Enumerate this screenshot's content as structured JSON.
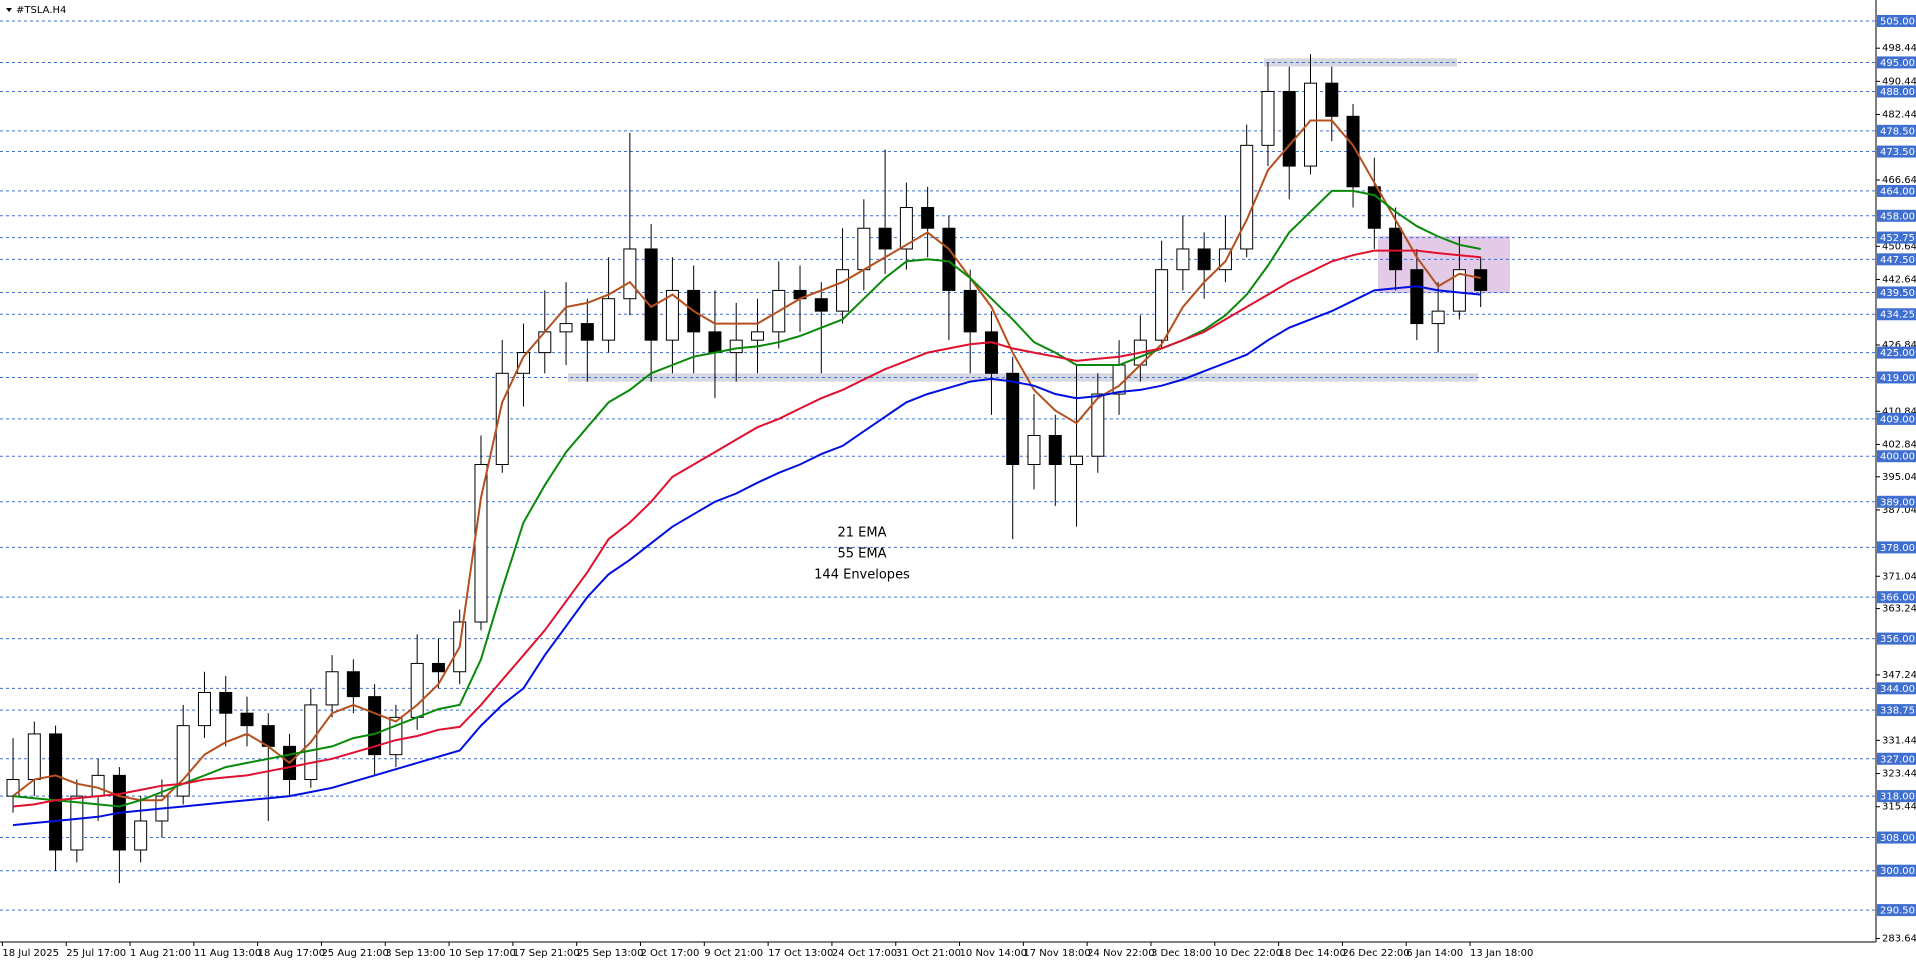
{
  "chart_data": {
    "type": "candlestick",
    "title": "#TSLA.H4",
    "categories": [
      "18 Jul 2025",
      null,
      null,
      "25 Jul 17:00",
      null,
      null,
      "1 Aug 21:00",
      null,
      null,
      "11 Aug 13:00",
      null,
      null,
      "18 Aug 17:00",
      null,
      null,
      "25 Aug 21:00",
      null,
      null,
      "3 Sep 13:00",
      null,
      null,
      "10 Sep 17:00",
      null,
      null,
      "17 Sep 21:00",
      null,
      null,
      "25 Sep 13:00",
      null,
      null,
      "2 Oct 17:00",
      null,
      null,
      "9 Oct 21:00",
      null,
      null,
      "17 Oct 13:00",
      null,
      null,
      "24 Oct 17:00",
      null,
      null,
      "31 Oct 21:00",
      null,
      null,
      "10 Nov 14:00",
      null,
      null,
      "17 Nov 18:00",
      null,
      null,
      "24 Nov 22:00",
      null,
      null,
      "3 Dec 18:00",
      null,
      null,
      "10 Dec 22:00",
      null,
      null,
      "18 Dec 14:00",
      null,
      null,
      "26 Dec 22:00",
      null,
      null,
      "6 Jan 14:00",
      null,
      null,
      "13 Jan 18:00"
    ],
    "open": [
      318,
      322,
      333,
      305,
      318,
      323,
      305,
      312,
      318,
      335,
      343,
      338,
      335,
      330,
      322,
      340,
      348,
      342,
      328,
      337,
      350,
      348,
      360,
      398,
      420,
      425,
      430,
      432,
      428,
      438,
      450,
      428,
      440,
      430,
      425,
      428,
      430,
      440,
      438,
      435,
      445,
      455,
      450,
      460,
      455,
      440,
      430,
      420,
      398,
      405,
      398,
      400,
      415,
      422,
      428,
      445,
      450,
      445,
      450,
      475,
      488,
      470,
      490,
      482,
      465,
      455,
      445,
      432,
      435,
      445
    ],
    "high": [
      332,
      336,
      335,
      322,
      327,
      325,
      318,
      322,
      340,
      348,
      347,
      342,
      338,
      333,
      344,
      352,
      351,
      345,
      340,
      357,
      356,
      363,
      405,
      428,
      432,
      440,
      442,
      438,
      448,
      478,
      456,
      448,
      446,
      440,
      437,
      438,
      447,
      446,
      442,
      455,
      462,
      474,
      466,
      465,
      458,
      445,
      435,
      424,
      415,
      410,
      422,
      420,
      428,
      434,
      452,
      458,
      454,
      458,
      480,
      495,
      494,
      497,
      494,
      485,
      472,
      460,
      450,
      442,
      453,
      448
    ],
    "low": [
      314,
      318,
      300,
      302,
      312,
      297,
      302,
      308,
      316,
      332,
      330,
      330,
      312,
      318,
      320,
      337,
      338,
      323,
      325,
      334,
      344,
      345,
      358,
      396,
      412,
      420,
      422,
      418,
      425,
      434,
      418,
      420,
      420,
      414,
      418,
      420,
      426,
      430,
      420,
      432,
      440,
      444,
      445,
      448,
      428,
      420,
      410,
      380,
      392,
      388,
      383,
      396,
      410,
      418,
      426,
      440,
      438,
      442,
      448,
      470,
      462,
      468,
      476,
      460,
      450,
      440,
      428,
      425,
      433,
      436
    ],
    "close": [
      322,
      333,
      305,
      318,
      323,
      305,
      312,
      318,
      335,
      343,
      338,
      335,
      330,
      322,
      340,
      348,
      342,
      328,
      337,
      350,
      348,
      360,
      398,
      420,
      425,
      430,
      432,
      428,
      438,
      450,
      428,
      440,
      430,
      425,
      428,
      430,
      440,
      438,
      435,
      445,
      455,
      450,
      460,
      455,
      440,
      430,
      420,
      398,
      405,
      398,
      400,
      415,
      422,
      428,
      445,
      450,
      445,
      450,
      475,
      488,
      470,
      490,
      482,
      465,
      455,
      445,
      432,
      435,
      445,
      440
    ],
    "bull_color": "#ffffff",
    "bear_color": "#000000",
    "series": [
      {
        "name": "21 EMA",
        "color": "#b5501e",
        "values": [
          318,
          322,
          323,
          321,
          320,
          318,
          317,
          317,
          322,
          328,
          331,
          333,
          330,
          326,
          331,
          338,
          340,
          338,
          336,
          340,
          345,
          354,
          390,
          413,
          424,
          430,
          436,
          437,
          439,
          442,
          436,
          439,
          435,
          432,
          432,
          432,
          435,
          438,
          440,
          442,
          445,
          448,
          451,
          454,
          450,
          443,
          436,
          425,
          416,
          411,
          408,
          414,
          417,
          422,
          427,
          436,
          442,
          447,
          457,
          469,
          475,
          481,
          481,
          475,
          466,
          457,
          448,
          441,
          444,
          443
        ]
      },
      {
        "name": "55 EMA",
        "color": "#0a8a0a",
        "values": [
          318,
          317.5,
          317,
          316.5,
          316,
          315.5,
          317,
          319,
          321,
          323,
          325,
          326,
          327,
          328,
          329,
          330,
          332,
          333,
          335,
          337,
          339,
          340,
          351,
          368,
          384,
          393,
          401,
          407,
          413,
          416,
          420,
          422,
          424,
          425,
          426,
          426.5,
          427.5,
          429,
          431,
          433,
          438,
          443,
          447,
          447.5,
          447,
          443,
          438,
          433,
          427.5,
          425,
          422,
          422,
          422,
          424,
          426,
          428,
          430.5,
          434,
          439,
          446,
          454,
          459,
          464,
          464,
          463,
          459,
          455.5,
          453,
          451,
          450
        ]
      },
      {
        "name": "144 Envelopes",
        "color": "#e0102f",
        "values": [
          315.5,
          316,
          317,
          317.5,
          318,
          318.5,
          319.5,
          320.5,
          321,
          322,
          322.5,
          323,
          324,
          325,
          326,
          327,
          328.5,
          330,
          331.5,
          332.5,
          334,
          334.7,
          340,
          346,
          352,
          358,
          365,
          372,
          380,
          384,
          389,
          395,
          398,
          401,
          404,
          407,
          409,
          411.5,
          414,
          416,
          418.5,
          421,
          423,
          425,
          426,
          427,
          427.5,
          426,
          425,
          424,
          423,
          423.5,
          424,
          425,
          426,
          428,
          430,
          433,
          436,
          439,
          442,
          444.5,
          447,
          448.5,
          449.6,
          449.6,
          449.6,
          449,
          448.5,
          448
        ],
        "lower_color": "#0010e0",
        "lower_values": [
          311,
          311.5,
          312,
          312.5,
          313,
          314,
          314.5,
          315,
          315.5,
          316,
          316.5,
          317,
          317.5,
          318,
          319,
          320,
          321.5,
          323,
          324.5,
          326,
          327.5,
          329,
          335,
          340,
          344,
          352,
          359,
          366,
          371.5,
          375,
          379,
          383,
          386,
          389,
          391,
          393.6,
          396,
          398,
          400.5,
          402.5,
          406,
          409.5,
          413,
          415,
          416.5,
          418,
          418.7,
          418,
          417,
          415,
          414,
          414.5,
          415.5,
          416,
          417,
          418.5,
          420.5,
          422.5,
          424.5,
          428,
          431,
          433,
          435,
          437.5,
          440,
          440.5,
          441,
          440,
          439.5,
          439
        ]
      }
    ],
    "ylim": [
      282.8,
      509.1
    ],
    "yticks": [
      498.44,
      490.44,
      482.44,
      466.64,
      450.64,
      442.64,
      426.84,
      410.84,
      402.84,
      395.04,
      387.04,
      371.04,
      363.24,
      347.24,
      331.44,
      323.44,
      315.44,
      283.64
    ],
    "levels": [
      {
        "value": 505,
        "label": "505.00"
      },
      {
        "value": 495,
        "label": "495.00"
      },
      {
        "value": 488,
        "label": "488.00"
      },
      {
        "value": 478.5,
        "label": "478.50"
      },
      {
        "value": 473.5,
        "label": "473.50"
      },
      {
        "value": 464,
        "label": "464.00"
      },
      {
        "value": 458,
        "label": "458.00"
      },
      {
        "value": 452.75,
        "label": "452.75"
      },
      {
        "value": 447.5,
        "label": "447.50"
      },
      {
        "value": 439.5,
        "label": "439.50"
      },
      {
        "value": 434.25,
        "label": "434.25"
      },
      {
        "value": 425,
        "label": "425.00"
      },
      {
        "value": 419,
        "label": "419.00"
      },
      {
        "value": 409,
        "label": "409.00"
      },
      {
        "value": 400,
        "label": "400.00"
      },
      {
        "value": 389,
        "label": "389.00"
      },
      {
        "value": 378,
        "label": "378.00"
      },
      {
        "value": 366,
        "label": "366.00"
      },
      {
        "value": 356,
        "label": "356.00"
      },
      {
        "value": 344,
        "label": "344.00"
      },
      {
        "value": 338.75,
        "label": "338.75"
      },
      {
        "value": 327,
        "label": "327.00"
      },
      {
        "value": 318,
        "label": "318.00"
      },
      {
        "value": 308,
        "label": "308.00"
      },
      {
        "value": 300,
        "label": "300.00"
      },
      {
        "value": 290.5,
        "label": "290.50"
      }
    ],
    "level_color": "#3f6fd0",
    "zones": [
      {
        "range": [
          494,
          496
        ],
        "color": "#c9c9d4"
      },
      {
        "range": [
          418,
          420
        ],
        "color": "#c9c9d4"
      },
      {
        "range": [
          439.3,
          453.1
        ],
        "color": "#d9b8dd"
      }
    ]
  }
}
